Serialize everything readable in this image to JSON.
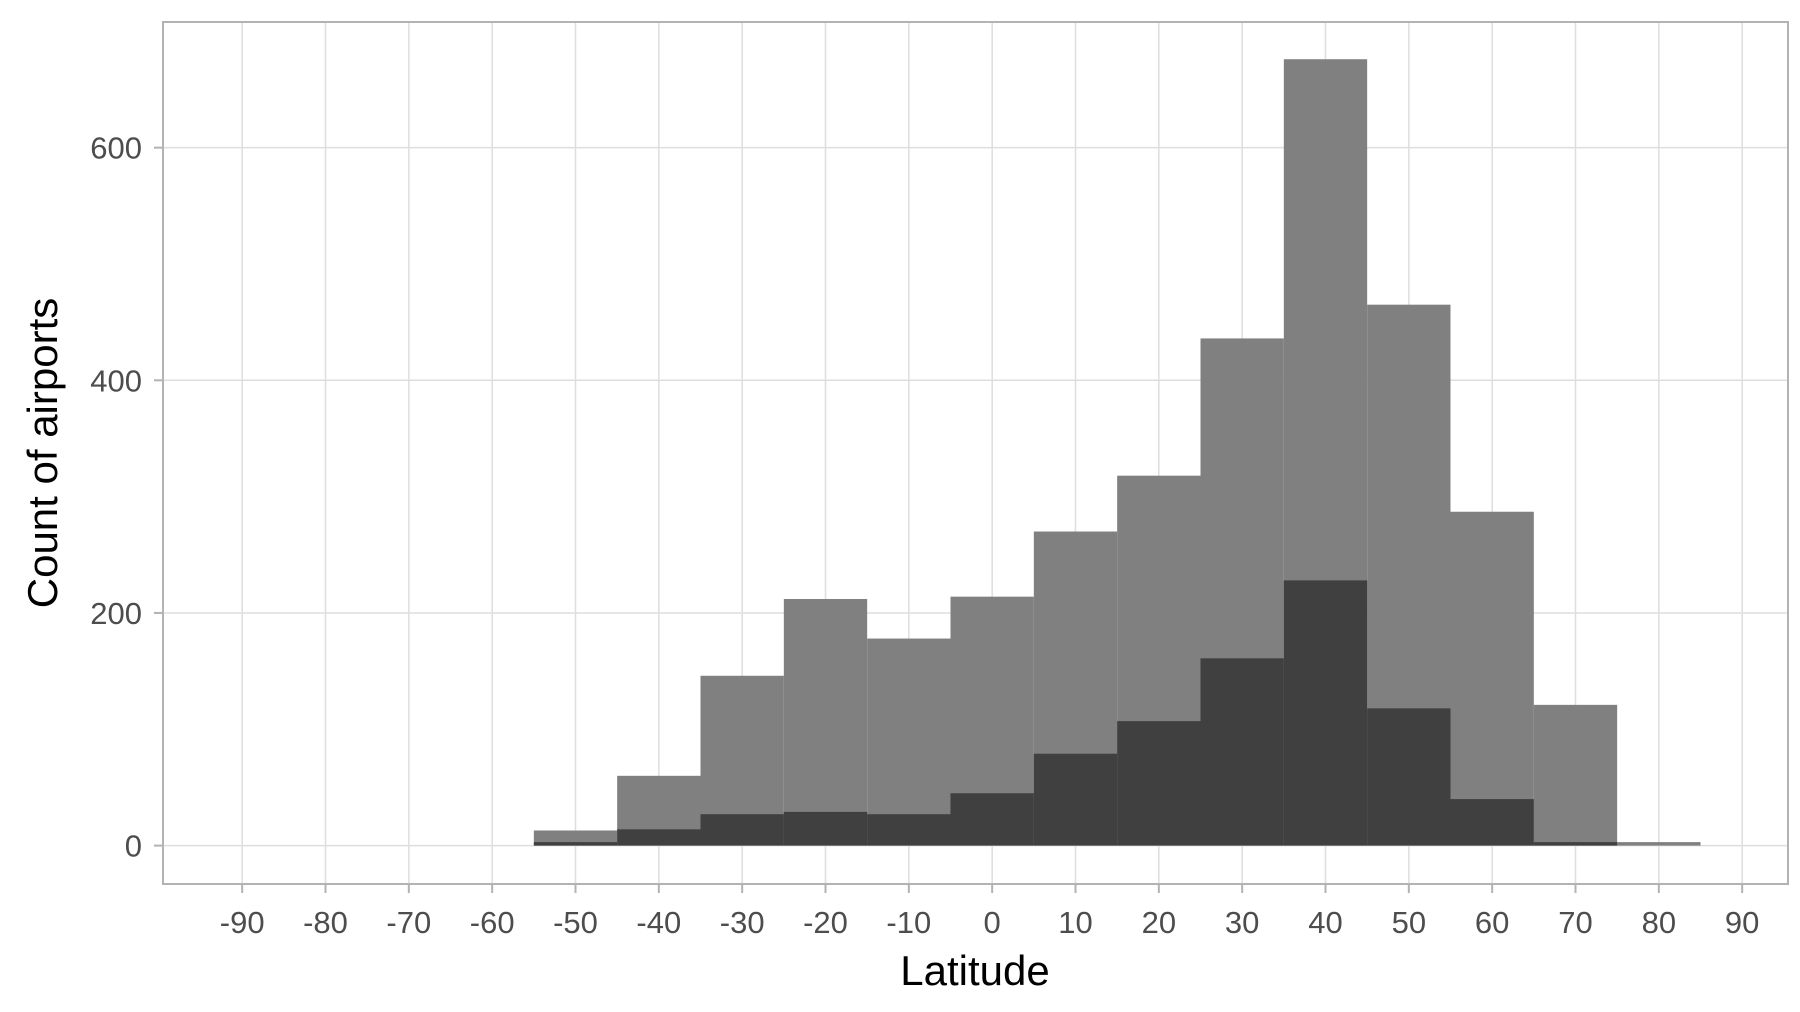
{
  "chart_data": {
    "type": "bar",
    "title": "",
    "xlabel": "Latitude",
    "ylabel": "Count of airports",
    "xlim": [
      -99.5,
      95.5
    ],
    "ylim": [
      -33,
      708
    ],
    "x_ticks": [
      -90,
      -80,
      -70,
      -60,
      -50,
      -40,
      -30,
      -20,
      -10,
      0,
      10,
      20,
      30,
      40,
      50,
      60,
      70,
      80,
      90
    ],
    "x_tick_labels": [
      "-90",
      "-80",
      "-70",
      "-60",
      "-50",
      "-40",
      "-30",
      "-20",
      "-10",
      "0",
      "10",
      "20",
      "30",
      "40",
      "50",
      "60",
      "70",
      "80",
      "90"
    ],
    "y_ticks": [
      0,
      200,
      400,
      600
    ],
    "y_tick_labels": [
      "0",
      "200",
      "400",
      "600"
    ],
    "grid": true,
    "bin_width": 10,
    "bin_centers": [
      -50,
      -40,
      -30,
      -20,
      -10,
      0,
      10,
      20,
      30,
      40,
      50,
      60,
      70,
      80
    ],
    "series": [
      {
        "values": [
          13,
          60,
          146,
          212,
          178,
          214,
          270,
          318,
          436,
          676,
          465,
          287,
          121,
          3
        ],
        "color": "#808080"
      },
      {
        "values": [
          3,
          14,
          27,
          29,
          27,
          45,
          79,
          107,
          161,
          228,
          118,
          40,
          3,
          0
        ],
        "color": "#404040"
      }
    ]
  }
}
